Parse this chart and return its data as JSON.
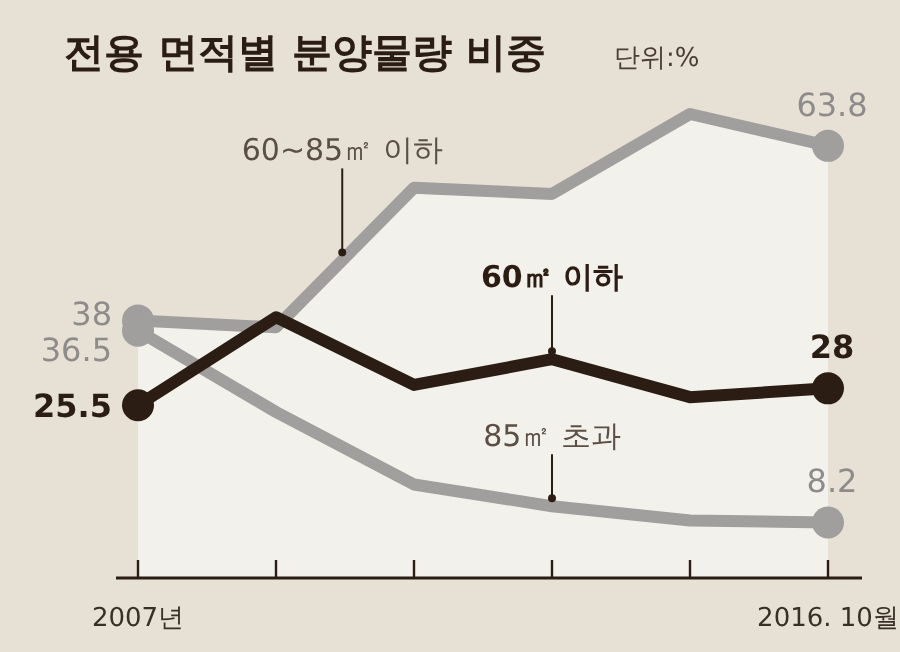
{
  "chart_data": {
    "type": "line",
    "title": "전용 면적별 분양물량 비중",
    "subtitle": "단위:%",
    "categories": [
      "2007년",
      null,
      null,
      null,
      null,
      "2016. 10월"
    ],
    "series": [
      {
        "name": "60~85㎡ 이하",
        "type": "area",
        "color": "#a09f9d",
        "values": [
          38,
          37,
          57.6,
          56.7,
          68.5,
          63.8
        ],
        "value_labels": [
          "38",
          null,
          null,
          null,
          null,
          "63.8"
        ]
      },
      {
        "name": "60㎡ 이하",
        "color": "#2b1d14",
        "values": [
          25.5,
          38.5,
          28.5,
          32.3,
          26.7,
          28
        ],
        "value_labels": [
          "25.5",
          null,
          null,
          null,
          null,
          "28"
        ]
      },
      {
        "name": "85㎡ 초과",
        "color": "#a09f9d",
        "values": [
          36.5,
          24.5,
          13.8,
          10.6,
          8.5,
          8.2
        ],
        "value_labels": [
          "36.5",
          null,
          null,
          null,
          null,
          "8.2"
        ]
      }
    ]
  }
}
